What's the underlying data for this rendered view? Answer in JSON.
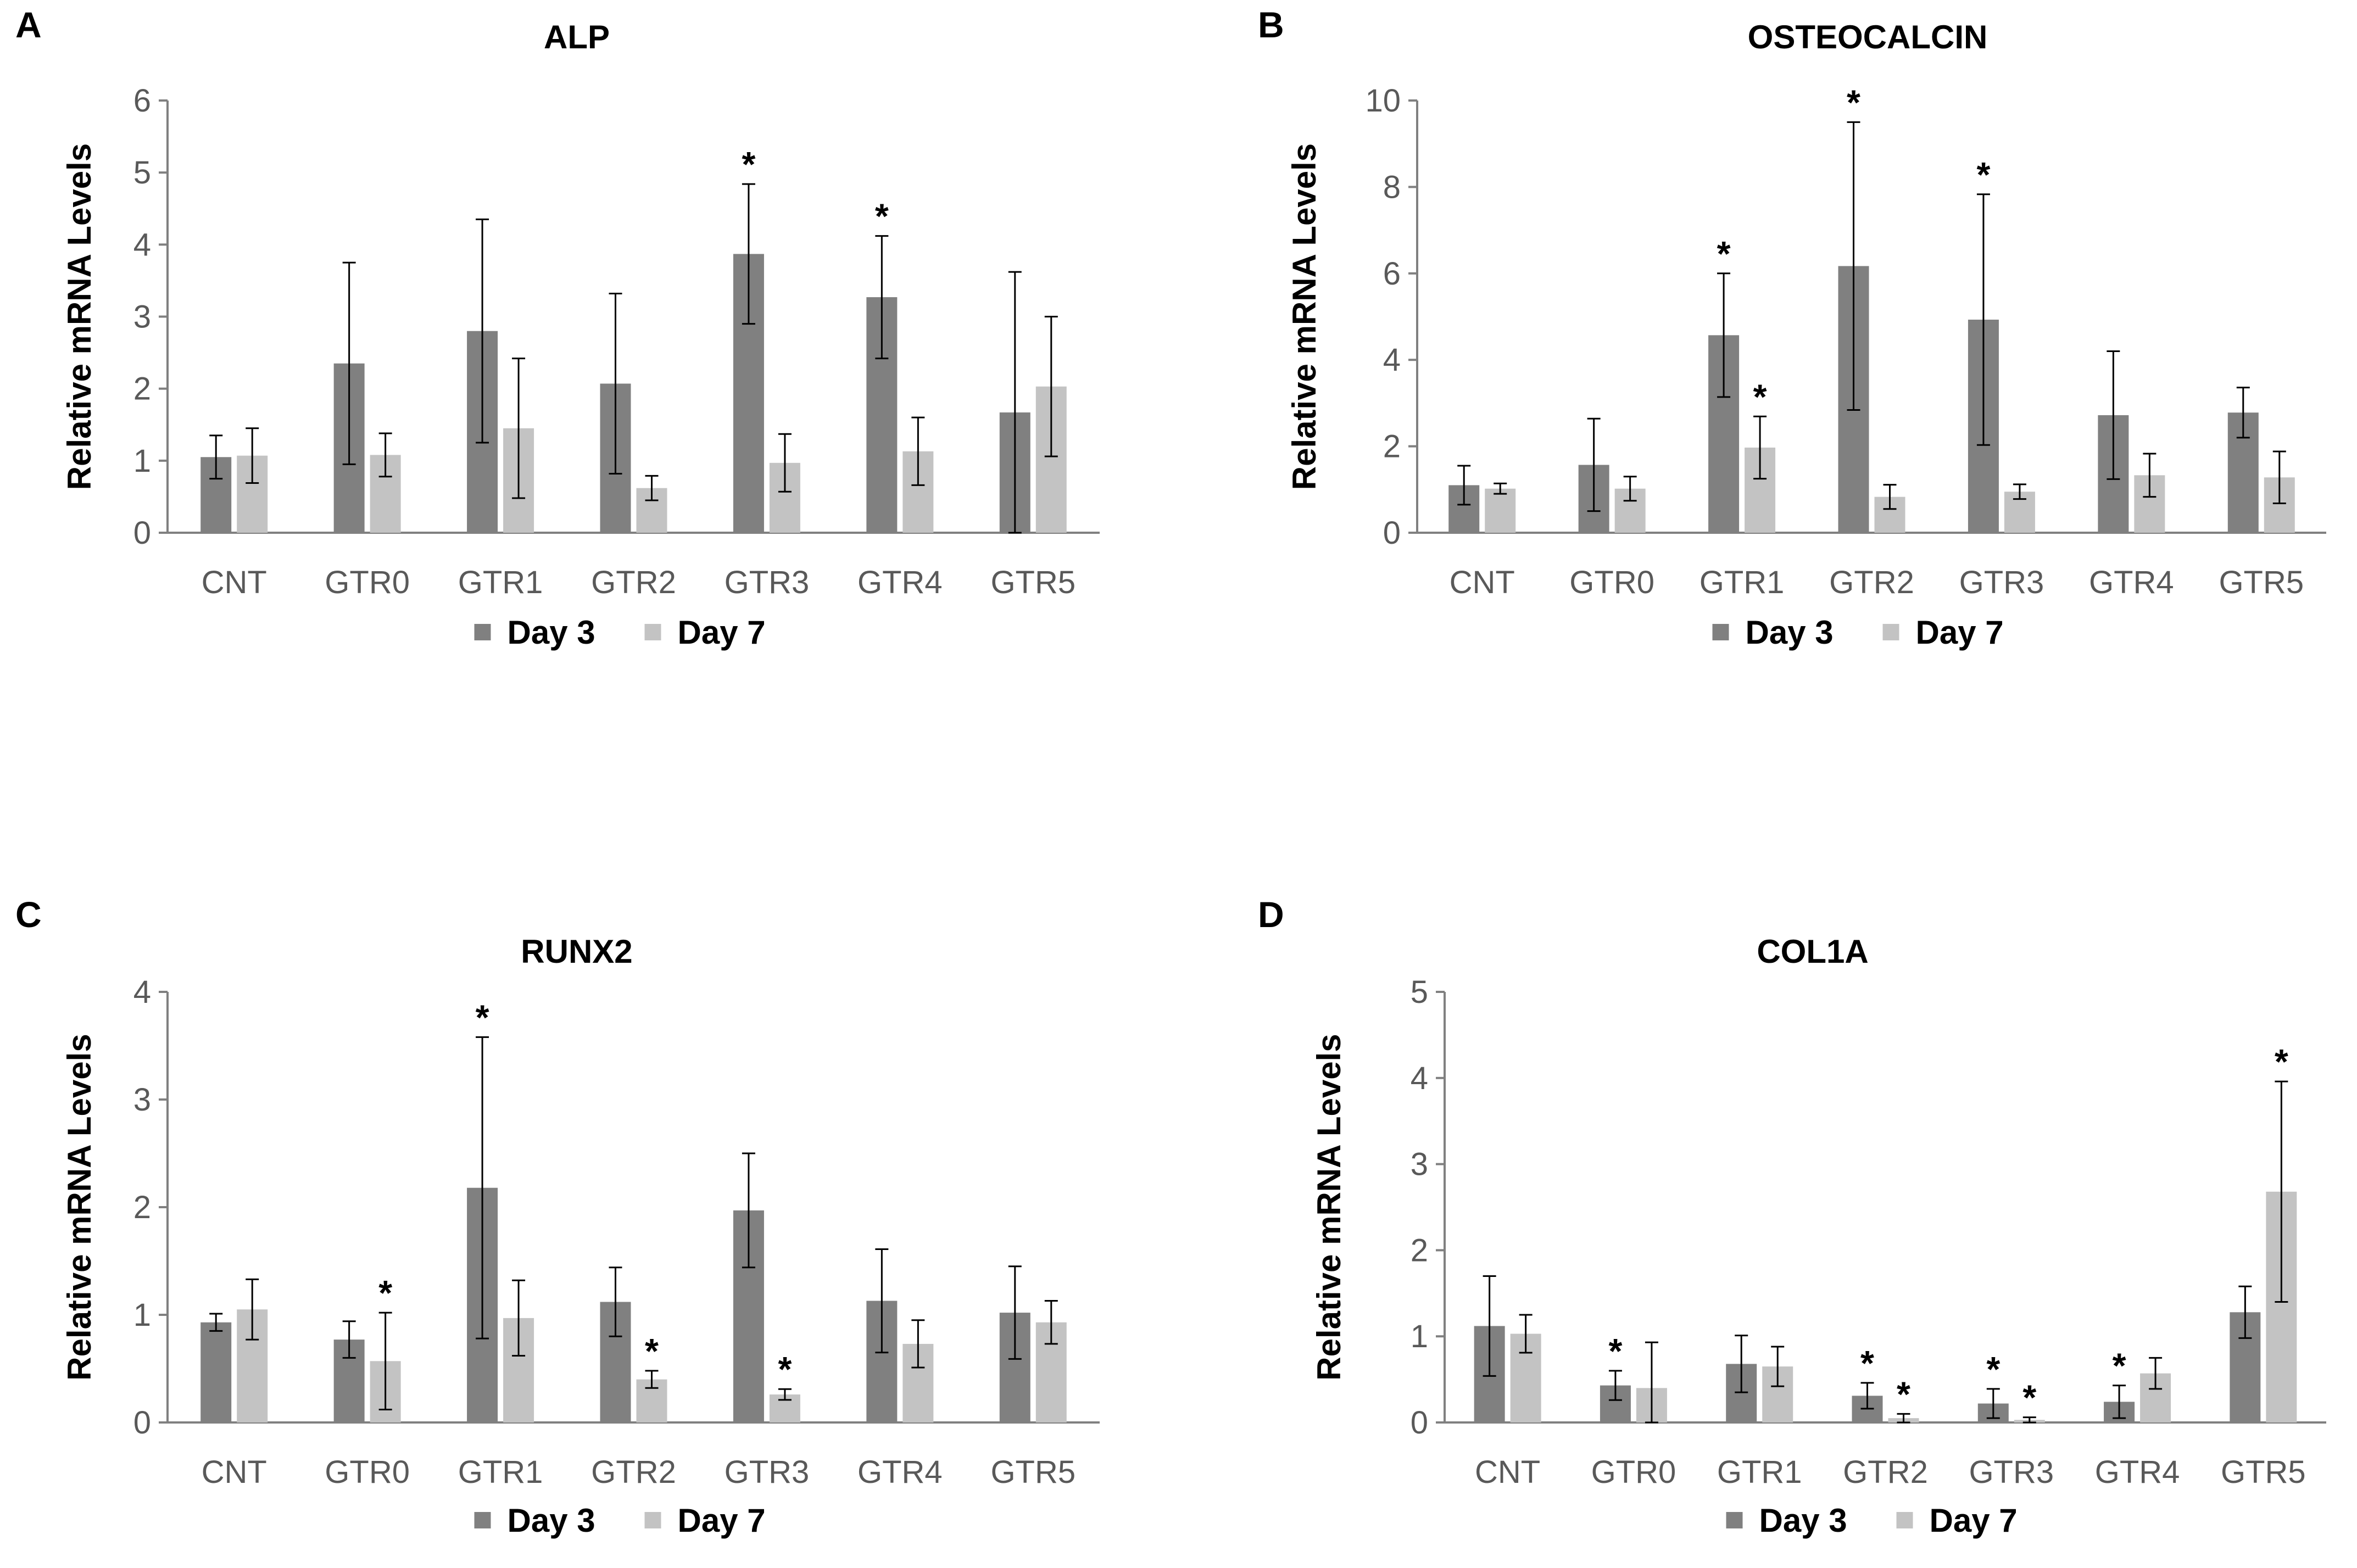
{
  "colors": {
    "day3": "#808080",
    "day7": "#c3c3c3",
    "axis": "#808080",
    "text": "#000000",
    "tick_text": "#595959",
    "error": "#000000"
  },
  "chart_data": [
    {
      "panel": "A",
      "type": "bar",
      "title": "ALP",
      "ylabel": "Relative mRNA Levels",
      "xlabel": "",
      "ylim": [
        0,
        6
      ],
      "yticks": [
        "0",
        "1",
        "2",
        "3",
        "4",
        "5",
        "6"
      ],
      "categories": [
        "CNT",
        "GTR0",
        "GTR1",
        "GTR2",
        "GTR3",
        "GTR4",
        "GTR5"
      ],
      "series": [
        {
          "name": "Day 3",
          "values": [
            1.05,
            2.35,
            2.8,
            2.07,
            3.87,
            3.27,
            1.67
          ],
          "errors": [
            0.3,
            1.4,
            1.55,
            1.25,
            0.97,
            0.85,
            1.95
          ],
          "stars": [
            false,
            false,
            false,
            false,
            true,
            true,
            false
          ]
        },
        {
          "name": "Day 7",
          "values": [
            1.07,
            1.08,
            1.45,
            0.62,
            0.97,
            1.13,
            2.03
          ],
          "errors": [
            0.38,
            0.3,
            0.97,
            0.17,
            0.4,
            0.47,
            0.97
          ],
          "stars": [
            false,
            false,
            false,
            false,
            false,
            false,
            false
          ]
        }
      ],
      "legend_position": "bottom",
      "annotation": "*"
    },
    {
      "panel": "B",
      "type": "bar",
      "title": "OSTEOCALCIN",
      "ylabel": "Relative mRNA Levels",
      "xlabel": "",
      "ylim": [
        0,
        10
      ],
      "yticks": [
        "0",
        "2",
        "4",
        "6",
        "8",
        "10"
      ],
      "categories": [
        "CNT",
        "GTR0",
        "GTR1",
        "GTR2",
        "GTR3",
        "GTR4",
        "GTR5"
      ],
      "series": [
        {
          "name": "Day 3",
          "values": [
            1.1,
            1.57,
            4.57,
            6.17,
            4.93,
            2.72,
            2.78
          ],
          "errors": [
            0.45,
            1.07,
            1.43,
            3.33,
            2.9,
            1.48,
            0.58
          ],
          "stars": [
            false,
            false,
            true,
            true,
            true,
            false,
            false
          ]
        },
        {
          "name": "Day 7",
          "values": [
            1.02,
            1.02,
            1.97,
            0.83,
            0.95,
            1.33,
            1.28
          ],
          "errors": [
            0.12,
            0.28,
            0.72,
            0.28,
            0.17,
            0.5,
            0.6
          ],
          "stars": [
            false,
            false,
            true,
            false,
            false,
            false,
            false
          ]
        }
      ],
      "legend_position": "bottom",
      "annotation": "*"
    },
    {
      "panel": "C",
      "type": "bar",
      "title": "RUNX2",
      "ylabel": "Relative mRNA Levels",
      "xlabel": "",
      "ylim": [
        0,
        4
      ],
      "yticks": [
        "0",
        "1",
        "2",
        "3",
        "4"
      ],
      "categories": [
        "CNT",
        "GTR0",
        "GTR1",
        "GTR2",
        "GTR3",
        "GTR4",
        "GTR5"
      ],
      "series": [
        {
          "name": "Day 3",
          "values": [
            0.93,
            0.77,
            2.18,
            1.12,
            1.97,
            1.13,
            1.02
          ],
          "errors": [
            0.08,
            0.17,
            1.4,
            0.32,
            0.53,
            0.48,
            0.43
          ],
          "stars": [
            false,
            false,
            true,
            false,
            false,
            false,
            false
          ]
        },
        {
          "name": "Day 7",
          "values": [
            1.05,
            0.57,
            0.97,
            0.4,
            0.26,
            0.73,
            0.93
          ],
          "errors": [
            0.28,
            0.45,
            0.35,
            0.08,
            0.05,
            0.22,
            0.2
          ],
          "stars": [
            false,
            true,
            false,
            true,
            true,
            false,
            false
          ]
        }
      ],
      "legend_position": "bottom",
      "annotation": "*"
    },
    {
      "panel": "D",
      "type": "bar",
      "title": "COL1A",
      "ylabel": "Relative mRNA Levels",
      "xlabel": "",
      "ylim": [
        0,
        5
      ],
      "yticks": [
        "0",
        "1",
        "2",
        "3",
        "4",
        "5"
      ],
      "categories": [
        "CNT",
        "GTR0",
        "GTR1",
        "GTR2",
        "GTR3",
        "GTR4",
        "GTR5"
      ],
      "series": [
        {
          "name": "Day 3",
          "values": [
            1.12,
            0.43,
            0.68,
            0.31,
            0.22,
            0.24,
            1.28
          ],
          "errors": [
            0.58,
            0.17,
            0.33,
            0.15,
            0.17,
            0.19,
            0.3
          ],
          "stars": [
            false,
            true,
            false,
            true,
            true,
            true,
            false
          ]
        },
        {
          "name": "Day 7",
          "values": [
            1.03,
            0.4,
            0.65,
            0.05,
            0.03,
            0.57,
            2.68
          ],
          "errors": [
            0.22,
            0.53,
            0.23,
            0.05,
            0.03,
            0.18,
            1.28
          ],
          "stars": [
            false,
            false,
            false,
            true,
            true,
            false,
            true
          ]
        }
      ],
      "legend_position": "bottom",
      "annotation": "*"
    }
  ]
}
